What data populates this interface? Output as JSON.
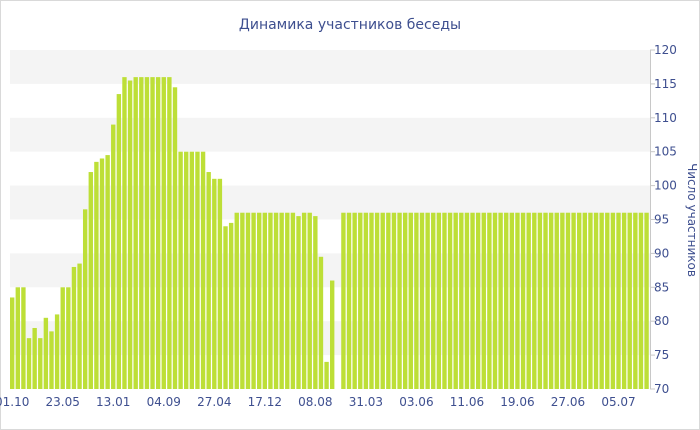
{
  "chart_data": {
    "type": "bar",
    "title": "Динамика участников беседы",
    "xlabel": "",
    "ylabel": "Число участников",
    "ylim": [
      70,
      120
    ],
    "yticks": [
      70,
      75,
      80,
      85,
      90,
      95,
      100,
      105,
      110,
      115,
      120
    ],
    "y_axis_side": "right",
    "grid": "horizontal alternating bands",
    "bar_color": "#bddf37",
    "band_color": "#f4f4f4",
    "text_color": "#3e4f8f",
    "x_tick_labels": [
      {
        "label": "01.10",
        "index": 0
      },
      {
        "label": "23.05",
        "index": 9
      },
      {
        "label": "13.01",
        "index": 18
      },
      {
        "label": "04.09",
        "index": 27
      },
      {
        "label": "27.04",
        "index": 36
      },
      {
        "label": "17.12",
        "index": 45
      },
      {
        "label": "08.08",
        "index": 54
      },
      {
        "label": "31.03",
        "index": 63
      },
      {
        "label": "03.06",
        "index": 72
      },
      {
        "label": "11.06",
        "index": 81
      },
      {
        "label": "19.06",
        "index": 90
      },
      {
        "label": "27.06",
        "index": 99
      },
      {
        "label": "05.07",
        "index": 108
      }
    ],
    "values": [
      83.5,
      85,
      85,
      77.5,
      79,
      77.5,
      80.5,
      78.5,
      81,
      85,
      85,
      88,
      88.5,
      96.5,
      102,
      103.5,
      104,
      104.5,
      109,
      113.5,
      116,
      115.5,
      116,
      116,
      116,
      116,
      116,
      116,
      116,
      114.5,
      105,
      105,
      105,
      105,
      105,
      102,
      101,
      101,
      94,
      94.5,
      96,
      96,
      96,
      96,
      96,
      96,
      96,
      96,
      96,
      96,
      96,
      95.5,
      96,
      96,
      95.5,
      89.5,
      74,
      86,
      70,
      96,
      96,
      96,
      96,
      96,
      96,
      96,
      96,
      96,
      96,
      96,
      96,
      96,
      96,
      96,
      96,
      96,
      96,
      96,
      96,
      96,
      96,
      96,
      96,
      96,
      96,
      96,
      96,
      96,
      96,
      96,
      96,
      96,
      96,
      96,
      96,
      96,
      96,
      96,
      96,
      96,
      96,
      96,
      96,
      96,
      96,
      96,
      96,
      96,
      96,
      96,
      96,
      96,
      96,
      96
    ]
  }
}
